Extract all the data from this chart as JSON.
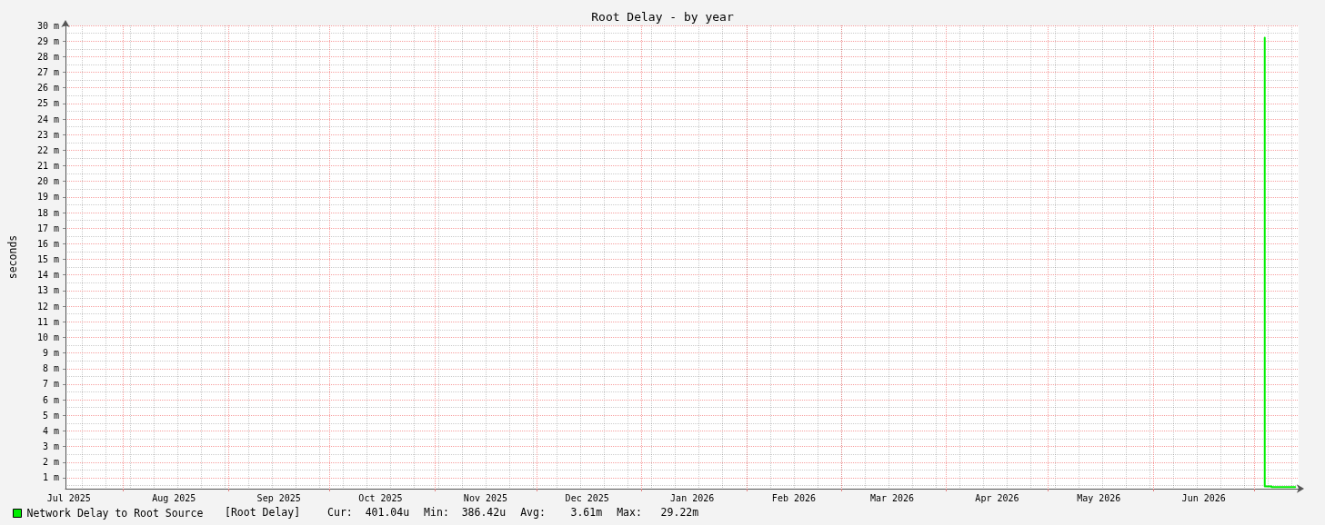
{
  "chart_data": {
    "type": "step",
    "title": "Root Delay - by year",
    "ylabel": "seconds",
    "x": [
      "2026-07-04",
      "2026-07-05",
      "2026-07-06",
      "2026-07-07",
      "2026-07-08",
      "2026-07-09",
      "2026-07-10",
      "2026-07-11",
      "2026-07-12",
      "2026-07-13"
    ],
    "series": [
      {
        "name": "Network Delay to Root Source",
        "color": "#00ee00",
        "values": [
          29.22,
          0.45,
          0.45,
          0.4,
          0.4,
          0.4,
          0.4,
          0.4,
          0.4,
          0.4
        ]
      }
    ],
    "xlim": [
      "2025-07-15",
      "2026-07-14"
    ],
    "xticks": [
      {
        "value": "2025-07-16",
        "label": "Jul 2025"
      },
      {
        "value": "2025-08-01",
        "label": null
      },
      {
        "value": "2025-08-16",
        "label": "Aug 2025"
      },
      {
        "value": "2025-09-01",
        "label": null
      },
      {
        "value": "2025-09-16",
        "label": "Sep 2025"
      },
      {
        "value": "2025-10-01",
        "label": null
      },
      {
        "value": "2025-10-16",
        "label": "Oct 2025"
      },
      {
        "value": "2025-11-01",
        "label": null
      },
      {
        "value": "2025-11-16",
        "label": "Nov 2025"
      },
      {
        "value": "2025-12-01",
        "label": null
      },
      {
        "value": "2025-12-16",
        "label": "Dec 2025"
      },
      {
        "value": "2026-01-01",
        "label": null
      },
      {
        "value": "2026-01-16",
        "label": "Jan 2026"
      },
      {
        "value": "2026-02-01",
        "label": null
      },
      {
        "value": "2026-02-15",
        "label": "Feb 2026"
      },
      {
        "value": "2026-03-01",
        "label": null
      },
      {
        "value": "2026-03-16",
        "label": "Mar 2026"
      },
      {
        "value": "2026-04-01",
        "label": null
      },
      {
        "value": "2026-04-16",
        "label": "Apr 2026"
      },
      {
        "value": "2026-05-01",
        "label": null
      },
      {
        "value": "2026-05-16",
        "label": "May 2026"
      },
      {
        "value": "2026-06-01",
        "label": null
      },
      {
        "value": "2026-06-16",
        "label": "Jun 2026"
      },
      {
        "value": "2026-07-01",
        "label": null
      }
    ],
    "ylim": [
      0.3,
      30
    ],
    "yticks": [
      {
        "value": 1,
        "label": "1 m"
      },
      {
        "value": 2,
        "label": "2 m"
      },
      {
        "value": 3,
        "label": "3 m"
      },
      {
        "value": 4,
        "label": "4 m"
      },
      {
        "value": 5,
        "label": "5 m"
      },
      {
        "value": 6,
        "label": "6 m"
      },
      {
        "value": 7,
        "label": "7 m"
      },
      {
        "value": 8,
        "label": "8 m"
      },
      {
        "value": 9,
        "label": "9 m"
      },
      {
        "value": 10,
        "label": "10 m"
      },
      {
        "value": 11,
        "label": "11 m"
      },
      {
        "value": 12,
        "label": "12 m"
      },
      {
        "value": 13,
        "label": "13 m"
      },
      {
        "value": 14,
        "label": "14 m"
      },
      {
        "value": 15,
        "label": "15 m"
      },
      {
        "value": 16,
        "label": "16 m"
      },
      {
        "value": 17,
        "label": "17 m"
      },
      {
        "value": 18,
        "label": "18 m"
      },
      {
        "value": 19,
        "label": "19 m"
      },
      {
        "value": 20,
        "label": "20 m"
      },
      {
        "value": 21,
        "label": "21 m"
      },
      {
        "value": 22,
        "label": "22 m"
      },
      {
        "value": 23,
        "label": "23 m"
      },
      {
        "value": 24,
        "label": "24 m"
      },
      {
        "value": 25,
        "label": "25 m"
      },
      {
        "value": 26,
        "label": "26 m"
      },
      {
        "value": 27,
        "label": "27 m"
      },
      {
        "value": 28,
        "label": "28 m"
      },
      {
        "value": 29,
        "label": "29 m"
      },
      {
        "value": 30,
        "label": "30 m"
      }
    ],
    "grid": true,
    "legend": "bottom left",
    "annotations": [
      "[Root Delay]",
      "Cur:  401.04u",
      "Min:  386.42u",
      "Avg:    3.61m",
      "Max:   29.22m"
    ]
  }
}
